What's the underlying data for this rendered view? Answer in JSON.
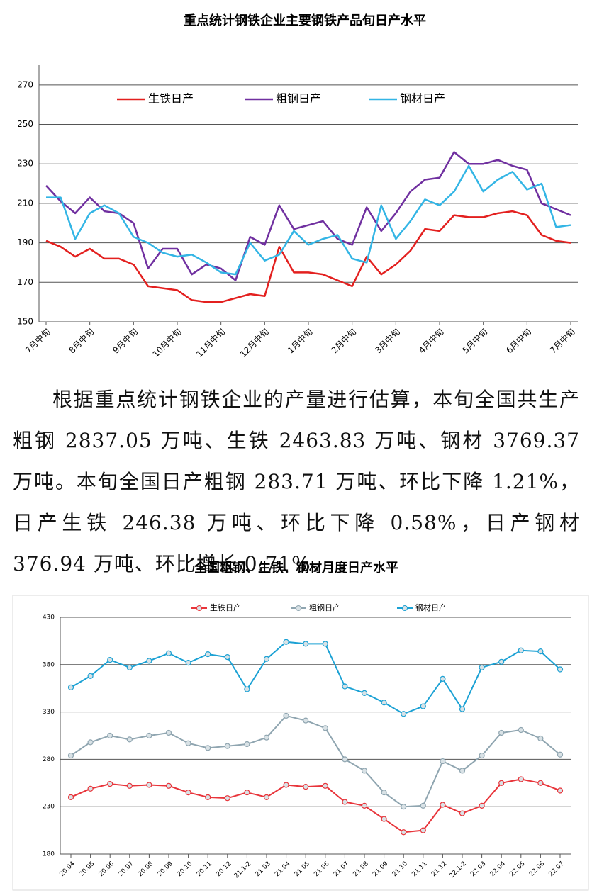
{
  "chart_data": [
    {
      "type": "line",
      "title": "重点统计钢铁企业主要钢铁产品旬日产水平",
      "categories": [
        "7月中旬",
        null,
        null,
        "8月中旬",
        null,
        null,
        "9月中旬",
        null,
        null,
        "10月中旬",
        null,
        null,
        "11月中旬",
        null,
        null,
        "12月中旬",
        null,
        null,
        "1月中旬",
        null,
        null,
        "2月中旬",
        null,
        null,
        "3月中旬",
        null,
        null,
        "4月中旬",
        null,
        null,
        "5月中旬",
        null,
        null,
        "6月中旬",
        null,
        null,
        "7月中旬"
      ],
      "series": [
        {
          "name": "生铁日产",
          "color": "#e3201f",
          "values": [
            191,
            188,
            183,
            187,
            182,
            182,
            179,
            168,
            167,
            166,
            161,
            160,
            160,
            162,
            164,
            163,
            188,
            175,
            175,
            174,
            171,
            168,
            183,
            174,
            179,
            186,
            197,
            196,
            204,
            203,
            203,
            205,
            206,
            204,
            194,
            191,
            190
          ]
        },
        {
          "name": "粗钢日产",
          "color": "#7030a0",
          "values": [
            219,
            211,
            205,
            213,
            206,
            205,
            200,
            177,
            187,
            187,
            174,
            179,
            177,
            171,
            193,
            189,
            209,
            197,
            199,
            201,
            192,
            189,
            208,
            196,
            205,
            216,
            222,
            223,
            236,
            230,
            230,
            232,
            229,
            227,
            210,
            207,
            204
          ]
        },
        {
          "name": "钢材日产",
          "color": "#33b5e5",
          "values": [
            213,
            213,
            192,
            205,
            209,
            205,
            193,
            190,
            185,
            183,
            184,
            180,
            175,
            174,
            190,
            181,
            184,
            196,
            189,
            192,
            194,
            182,
            180,
            209,
            192,
            201,
            212,
            209,
            216,
            229,
            216,
            222,
            226,
            217,
            220,
            198,
            199
          ]
        }
      ],
      "ylim": [
        150,
        280
      ],
      "yticks": [
        150,
        170,
        190,
        210,
        230,
        250,
        270
      ],
      "grid": true,
      "markers": false
    },
    {
      "type": "line",
      "title": "全国粗钢、生铁、钢材月度日产水平",
      "categories": [
        "20.04",
        "20.05",
        "20.06",
        "20.07",
        "20.08",
        "20.09",
        "20.10",
        "20.11",
        "20.12",
        "21.1-2",
        "21.03",
        "21.04",
        "21.05",
        "21.06",
        "21.07",
        "21.08",
        "21.09",
        "21.10",
        "21.11",
        "21.12",
        "22.1-2",
        "22.03",
        "22.04",
        "22.05",
        "22.06",
        "22.07"
      ],
      "series": [
        {
          "name": "生铁日产",
          "color": "#e8343a",
          "values": [
            240,
            249,
            254,
            252,
            253,
            252,
            245,
            240,
            239,
            245,
            240,
            253,
            251,
            252,
            235,
            231,
            217,
            203,
            205,
            232,
            223,
            231,
            255,
            259,
            255,
            247
          ]
        },
        {
          "name": "粗钢日产",
          "color": "#8fa5b0",
          "values": [
            284,
            298,
            305,
            301,
            305,
            308,
            297,
            292,
            294,
            296,
            303,
            326,
            321,
            313,
            280,
            268,
            245,
            230,
            231,
            278,
            268,
            284,
            308,
            311,
            302,
            285
          ]
        },
        {
          "name": "钢材日产",
          "color": "#1ba1d4",
          "values": [
            356,
            368,
            385,
            377,
            384,
            392,
            382,
            391,
            388,
            354,
            386,
            404,
            402,
            402,
            357,
            350,
            340,
            328,
            336,
            365,
            333,
            377,
            383,
            395,
            394,
            375
          ]
        }
      ],
      "ylim": [
        180,
        430
      ],
      "yticks": [
        180,
        230,
        280,
        330,
        380,
        430
      ],
      "grid": true,
      "markers": true
    }
  ],
  "paragraph": "根据重点统计钢铁企业的产量进行估算，本旬全国共生产粗钢 2837.05 万吨、生铁 2463.83 万吨、钢材 3769.37 万吨。本旬全国日产粗钢 283.71 万吨、环比下降 1.21%，日产生铁 246.38 万吨、环比下降 0.58%，日产钢材 376.94 万吨、环比增长 0.71%。"
}
